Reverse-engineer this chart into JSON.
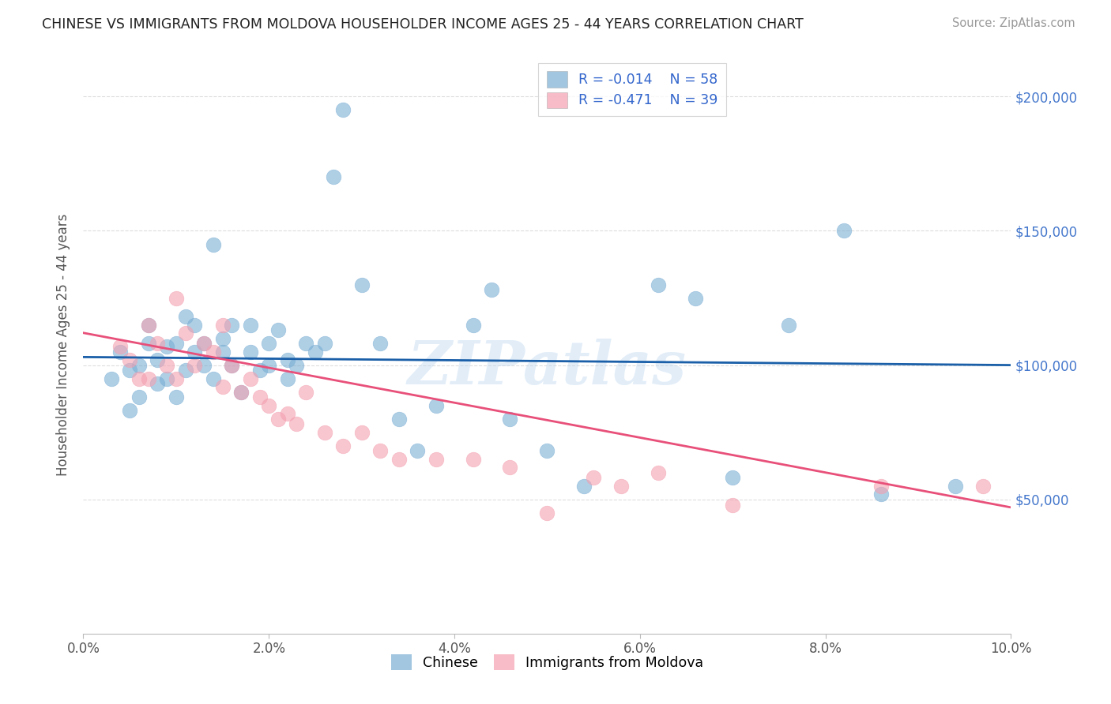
{
  "title": "CHINESE VS IMMIGRANTS FROM MOLDOVA HOUSEHOLDER INCOME AGES 25 - 44 YEARS CORRELATION CHART",
  "source": "Source: ZipAtlas.com",
  "ylabel": "Householder Income Ages 25 - 44 years",
  "x_min": 0.0,
  "x_max": 0.1,
  "y_min": 0,
  "y_max": 215000,
  "ytick_values": [
    50000,
    100000,
    150000,
    200000
  ],
  "ytick_labels": [
    "$50,000",
    "$100,000",
    "$150,000",
    "$200,000"
  ],
  "xtick_values": [
    0.0,
    0.02,
    0.04,
    0.06,
    0.08,
    0.1
  ],
  "xtick_labels": [
    "0.0%",
    "2.0%",
    "4.0%",
    "6.0%",
    "8.0%",
    "10.0%"
  ],
  "chinese_color": "#7BAFD4",
  "moldova_color": "#F4A0B0",
  "chinese_line_color": "#1A5FA8",
  "moldova_line_color": "#E8507A",
  "legend_R_chinese": "-0.014",
  "legend_N_chinese": "58",
  "legend_R_moldova": "-0.471",
  "legend_N_moldova": "39",
  "watermark": "ZIPatlas",
  "background_color": "#FFFFFF",
  "grid_color": "#DDDDDD",
  "chinese_x": [
    0.003,
    0.004,
    0.005,
    0.005,
    0.006,
    0.006,
    0.007,
    0.007,
    0.008,
    0.008,
    0.009,
    0.009,
    0.01,
    0.01,
    0.011,
    0.011,
    0.012,
    0.012,
    0.013,
    0.013,
    0.014,
    0.014,
    0.015,
    0.015,
    0.016,
    0.016,
    0.017,
    0.018,
    0.018,
    0.019,
    0.02,
    0.02,
    0.021,
    0.022,
    0.022,
    0.023,
    0.024,
    0.025,
    0.026,
    0.027,
    0.028,
    0.03,
    0.032,
    0.034,
    0.036,
    0.038,
    0.042,
    0.044,
    0.046,
    0.05,
    0.054,
    0.062,
    0.066,
    0.07,
    0.076,
    0.082,
    0.086,
    0.094
  ],
  "chinese_y": [
    95000,
    105000,
    98000,
    83000,
    100000,
    88000,
    108000,
    115000,
    93000,
    102000,
    95000,
    107000,
    88000,
    108000,
    118000,
    98000,
    105000,
    115000,
    100000,
    108000,
    145000,
    95000,
    105000,
    110000,
    100000,
    115000,
    90000,
    105000,
    115000,
    98000,
    100000,
    108000,
    113000,
    95000,
    102000,
    100000,
    108000,
    105000,
    108000,
    170000,
    195000,
    130000,
    108000,
    80000,
    68000,
    85000,
    115000,
    128000,
    80000,
    68000,
    55000,
    130000,
    125000,
    58000,
    115000,
    150000,
    52000,
    55000
  ],
  "moldova_x": [
    0.004,
    0.005,
    0.006,
    0.007,
    0.007,
    0.008,
    0.009,
    0.01,
    0.01,
    0.011,
    0.012,
    0.013,
    0.014,
    0.015,
    0.015,
    0.016,
    0.017,
    0.018,
    0.019,
    0.02,
    0.021,
    0.022,
    0.023,
    0.024,
    0.026,
    0.028,
    0.03,
    0.032,
    0.034,
    0.038,
    0.042,
    0.046,
    0.05,
    0.055,
    0.058,
    0.062,
    0.07,
    0.086,
    0.097
  ],
  "moldova_y": [
    107000,
    102000,
    95000,
    115000,
    95000,
    108000,
    100000,
    95000,
    125000,
    112000,
    100000,
    108000,
    105000,
    92000,
    115000,
    100000,
    90000,
    95000,
    88000,
    85000,
    80000,
    82000,
    78000,
    90000,
    75000,
    70000,
    75000,
    68000,
    65000,
    65000,
    65000,
    62000,
    45000,
    58000,
    55000,
    60000,
    48000,
    55000,
    55000
  ]
}
